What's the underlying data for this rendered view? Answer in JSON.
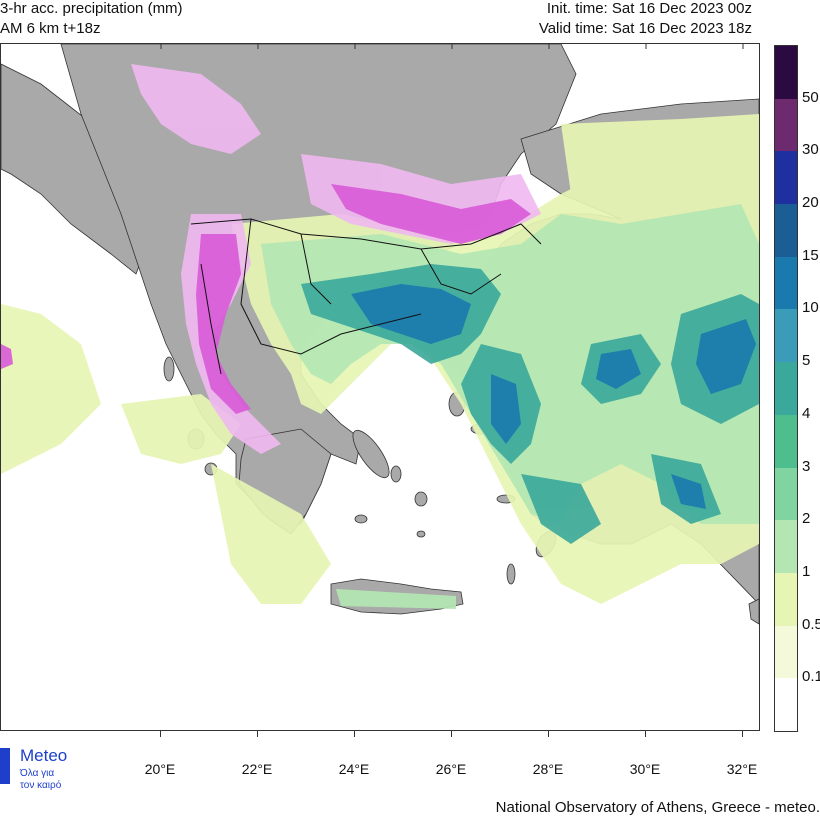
{
  "header": {
    "title_line1": "3-hr acc. precipitation (mm)",
    "title_line2": "AM 6 km t+18z",
    "init_time": "Init. time: Sat 16 Dec 2023 00z",
    "valid_time": "Valid time: Sat 16 Dec 2023 18z"
  },
  "map": {
    "longitude_labels": [
      "20°E",
      "22°E",
      "24°E",
      "26°E",
      "28°E",
      "30°E",
      "32°E"
    ],
    "longitudes": [
      20,
      22,
      24,
      26,
      28,
      30,
      32
    ],
    "land_color": "#a9a9a9",
    "sea_color": "#ffffff"
  },
  "legend": {
    "labels": [
      "50",
      "30",
      "20",
      "15",
      "10",
      "5",
      "4",
      "3",
      "2",
      "1",
      "0.5",
      "0.1"
    ],
    "colors": [
      "#2a0a40",
      "#6e2a6e",
      "#1f2fa0",
      "#1b5e95",
      "#1a7aae",
      "#3a9cb8",
      "#3aa89a",
      "#4fbe8e",
      "#7fd4a0",
      "#b3e6b3",
      "#e6f5b3",
      "#f4f9d9",
      "#ffffff"
    ]
  },
  "logo": {
    "name": "Meteo",
    "subtitle1": "Όλα για",
    "subtitle2": "τον καιρό"
  },
  "footer": {
    "credit": "National Observatory of Athens, Greece - meteo."
  }
}
